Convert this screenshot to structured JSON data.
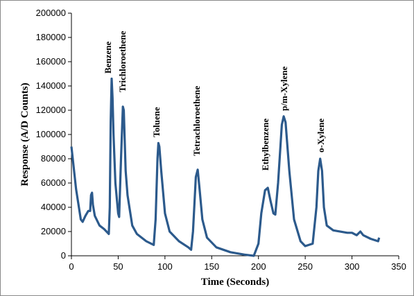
{
  "chart_data": {
    "type": "line",
    "x_label": "Time (Seconds)",
    "y_label": "Response (A/D Counts)",
    "color": "#2c5a8c",
    "x": [
      0,
      5,
      10,
      12,
      15,
      18,
      20,
      21,
      22,
      23,
      25,
      30,
      35,
      40,
      41,
      42,
      43,
      44,
      45,
      47,
      50,
      51,
      53,
      55,
      56,
      58,
      60,
      62,
      65,
      70,
      80,
      88,
      90,
      92,
      93,
      94,
      96,
      100,
      105,
      115,
      125,
      128,
      130,
      133,
      135,
      137,
      140,
      145,
      155,
      170,
      185,
      195,
      200,
      203,
      207,
      210,
      213,
      216,
      218,
      221,
      225,
      227,
      229,
      233,
      238,
      245,
      250,
      258,
      262,
      264,
      266,
      268,
      270,
      273,
      280,
      295,
      300,
      305,
      309,
      312,
      320,
      328,
      329
    ],
    "values": [
      90000,
      55000,
      30000,
      28000,
      33000,
      37000,
      37000,
      50000,
      52000,
      42000,
      33000,
      25000,
      22000,
      18000,
      40000,
      110000,
      146000,
      130000,
      100000,
      60000,
      35000,
      32000,
      80000,
      123000,
      120000,
      70000,
      50000,
      40000,
      25000,
      18000,
      12000,
      9000,
      30000,
      80000,
      93000,
      90000,
      70000,
      35000,
      20000,
      12000,
      7000,
      5000,
      20000,
      65000,
      71000,
      55000,
      30000,
      15000,
      7000,
      3000,
      1000,
      0,
      10000,
      35000,
      54000,
      56000,
      45000,
      35000,
      34000,
      60000,
      108000,
      115000,
      110000,
      70000,
      30000,
      12000,
      8000,
      10000,
      40000,
      70000,
      80000,
      70000,
      40000,
      25000,
      21000,
      19000,
      19000,
      17000,
      20000,
      17000,
      14000,
      12000,
      15000
    ],
    "annotations": [
      "Benzene",
      "Trichloroethene",
      "Toluene",
      "Tetrachloroethene",
      "Ethylbenzene",
      "p/m-Xylene",
      "o-Xylene"
    ],
    "xlim": [
      0,
      350
    ],
    "xticks": [
      0,
      50,
      100,
      150,
      200,
      250,
      300,
      350
    ],
    "ylim": [
      0,
      200000
    ],
    "yticks": [
      0,
      20000,
      40000,
      60000,
      80000,
      100000,
      120000,
      140000,
      160000,
      180000,
      200000
    ]
  }
}
